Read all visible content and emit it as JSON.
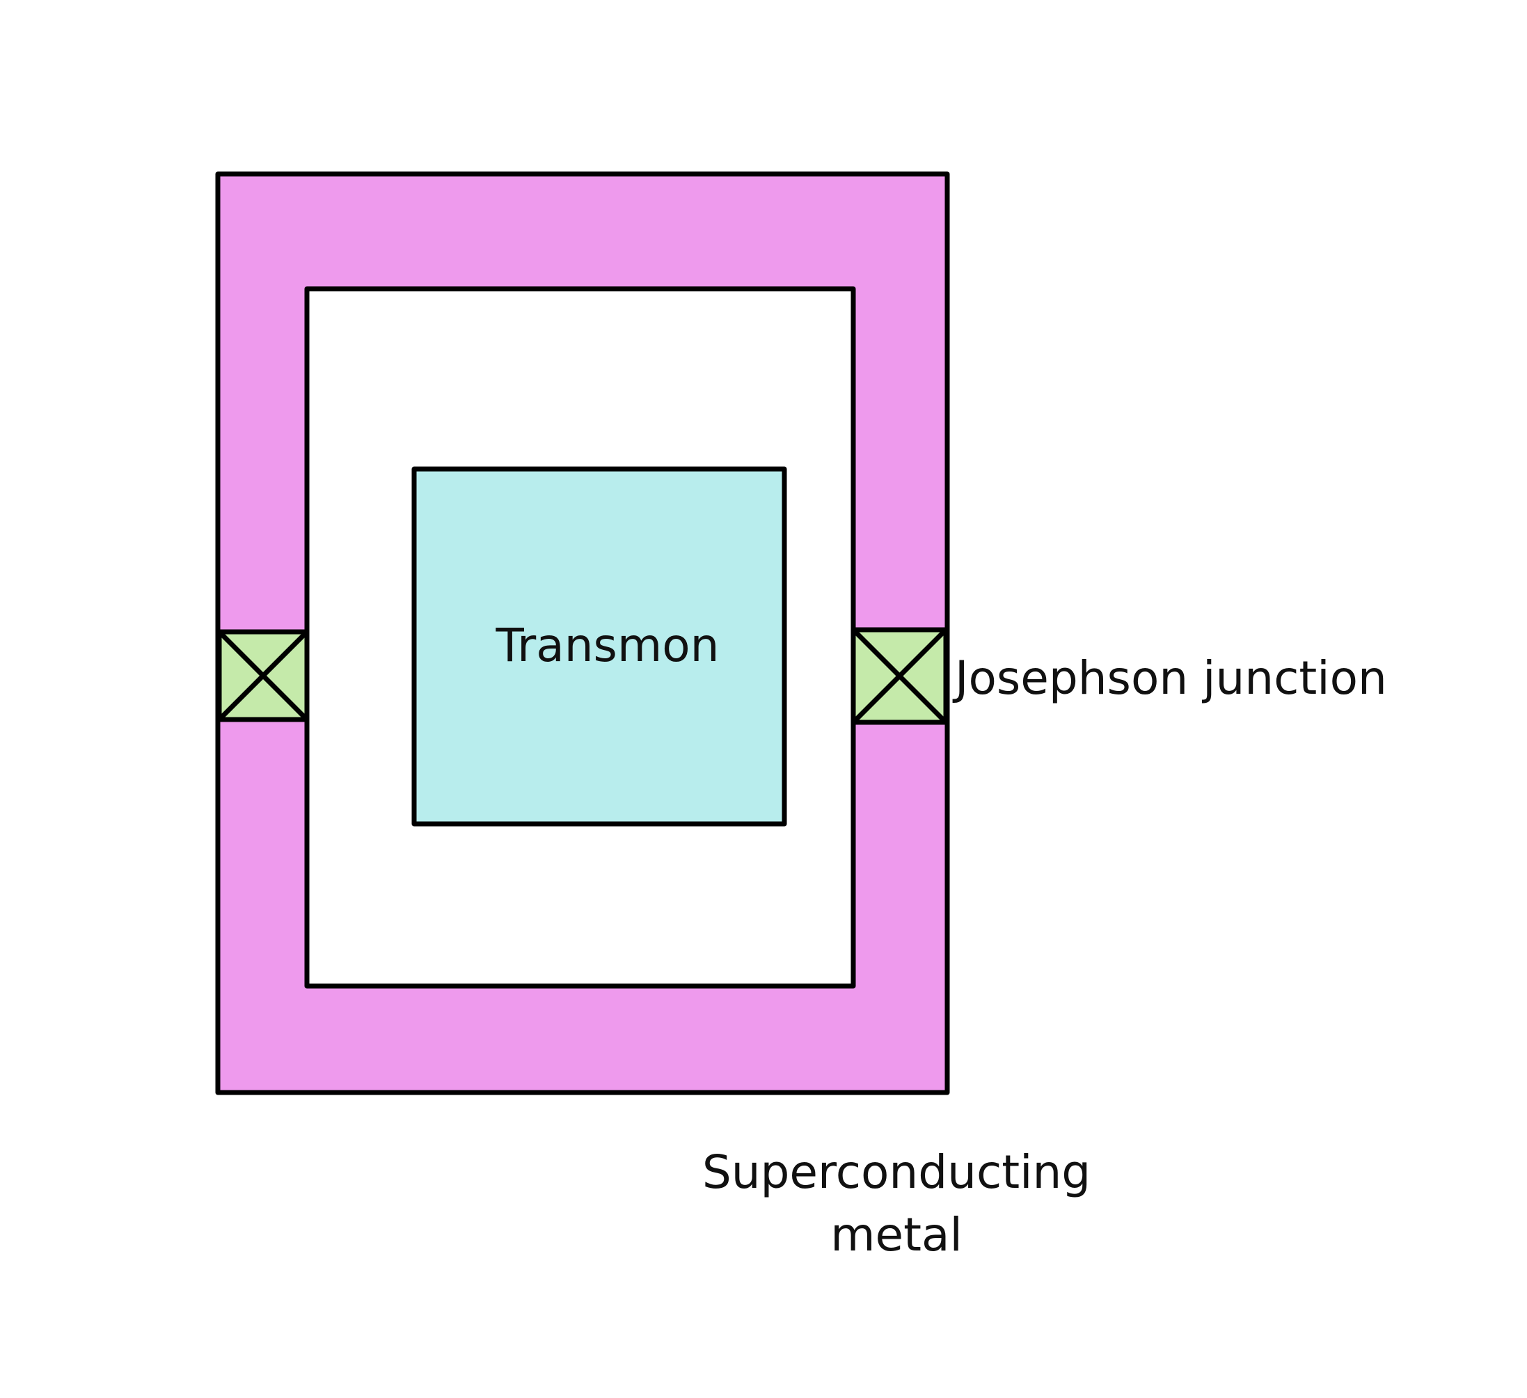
{
  "diagram": {
    "labels": {
      "transmon": "Transmon",
      "josephson_junction": "Josephson junction",
      "superconducting_line1": "Superconducting",
      "superconducting_line2": "metal"
    },
    "colors": {
      "superconducting_metal": "#ee9aed",
      "transmon": "#b8eded",
      "junction": "#c5eaaa",
      "gap": "#ffffff",
      "outline": "#000000"
    },
    "icons": {
      "junction_symbol": "crossed-box-icon"
    }
  }
}
